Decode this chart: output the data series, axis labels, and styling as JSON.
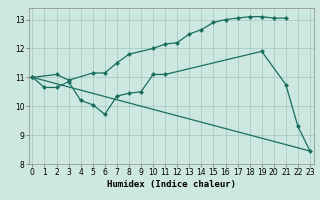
{
  "xlabel": "Humidex (Indice chaleur)",
  "bg_color": "#cde8e0",
  "grid_color": "#aaccc4",
  "line_color": "#1a6e60",
  "line1": {
    "x": [
      0,
      2,
      3,
      5,
      6,
      7,
      8,
      10,
      11,
      12,
      13,
      14,
      15,
      16,
      17,
      18,
      19,
      20,
      21
    ],
    "y": [
      11,
      11.1,
      10.9,
      11.15,
      11.15,
      11.5,
      11.8,
      12.0,
      12.15,
      12.2,
      12.5,
      12.65,
      12.9,
      13.0,
      13.05,
      13.1,
      13.1,
      13.05,
      13.05
    ]
  },
  "line2": {
    "x": [
      0,
      1,
      2,
      3,
      4,
      5,
      6,
      7,
      8,
      9,
      10,
      11,
      19,
      21,
      22,
      23
    ],
    "y": [
      11,
      10.65,
      10.65,
      10.85,
      10.2,
      10.05,
      9.72,
      10.35,
      10.45,
      10.5,
      11.1,
      11.1,
      11.9,
      10.75,
      9.3,
      8.45
    ]
  },
  "line3": {
    "x": [
      0,
      23
    ],
    "y": [
      11,
      8.45
    ]
  },
  "xlim": [
    -0.3,
    23.3
  ],
  "ylim": [
    8.0,
    13.4
  ],
  "yticks": [
    8,
    9,
    10,
    11,
    12,
    13
  ],
  "xticks": [
    0,
    1,
    2,
    3,
    4,
    5,
    6,
    7,
    8,
    9,
    10,
    11,
    12,
    13,
    14,
    15,
    16,
    17,
    18,
    19,
    20,
    21,
    22,
    23
  ],
  "marker": "D",
  "markersize": 2.5,
  "linewidth": 0.9,
  "tick_labelsize": 5.5,
  "xlabel_fontsize": 6.5
}
